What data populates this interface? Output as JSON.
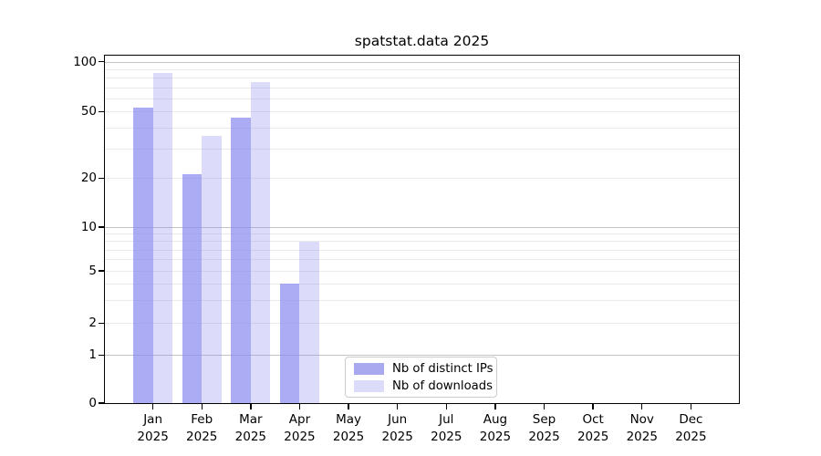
{
  "chart_data": {
    "type": "bar",
    "title": "spatstat.data 2025",
    "categories": [
      "Jan",
      "Feb",
      "Mar",
      "Apr",
      "May",
      "Jun",
      "Jul",
      "Aug",
      "Sep",
      "Oct",
      "Nov",
      "Dec"
    ],
    "category_year": "2025",
    "series": [
      {
        "name": "Nb of distinct IPs",
        "color": "rgba(140,140,240,0.72)",
        "legend_color": "#a9a9ef",
        "values": [
          53,
          21,
          46,
          4,
          0,
          0,
          0,
          0,
          0,
          0,
          0,
          0
        ]
      },
      {
        "name": "Nb of downloads",
        "color": "rgba(140,140,240,0.30)",
        "legend_color": "#dcdcfa",
        "values": [
          86,
          36,
          75,
          8,
          0,
          0,
          0,
          0,
          0,
          0,
          0,
          0
        ]
      }
    ],
    "xlabel": "",
    "ylabel": "",
    "y_ticks": [
      0,
      1,
      2,
      5,
      10,
      20,
      50,
      100
    ],
    "y_axis": {
      "scale": "symlog",
      "ylim": [
        0,
        110
      ],
      "anchors": [
        {
          "v": 0,
          "f": 0.0
        },
        {
          "v": 1,
          "f": 0.1384
        },
        {
          "v": 2,
          "f": 0.2298
        },
        {
          "v": 5,
          "f": 0.3804
        },
        {
          "v": 10,
          "f": 0.5065
        },
        {
          "v": 20,
          "f": 0.6475
        },
        {
          "v": 50,
          "f": 0.8389
        },
        {
          "v": 100,
          "f": 0.9825
        }
      ]
    },
    "major_gridlines": [
      1,
      10,
      100
    ],
    "minor_gridlines": [
      2,
      3,
      4,
      5,
      6,
      7,
      8,
      9,
      20,
      30,
      40,
      50,
      60,
      70,
      80,
      90
    ],
    "grid_on": true,
    "legend_position": "bottom-center",
    "bar_width": 21.5,
    "colors": {
      "major_grid": "#c3c3c3",
      "minor_grid": "#eaeaea",
      "spine": "#000000",
      "text": "#000000",
      "background": "#ffffff"
    }
  }
}
